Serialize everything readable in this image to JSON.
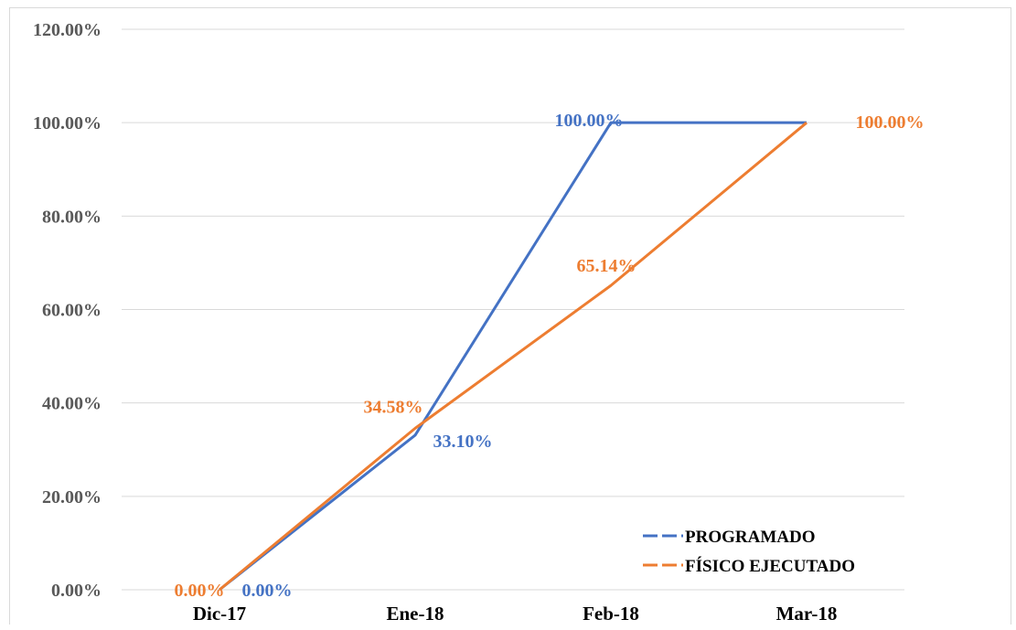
{
  "chart_data": {
    "type": "line",
    "title": "",
    "xlabel": "",
    "ylabel": "",
    "categories": [
      "Dic-17",
      "Ene-18",
      "Feb-18",
      "Mar-18"
    ],
    "ylim": [
      0,
      120
    ],
    "yticks": [
      "0.00%",
      "20.00%",
      "40.00%",
      "60.00%",
      "80.00%",
      "100.00%",
      "120.00%"
    ],
    "grid": true,
    "legend_position": "bottom-right",
    "series": [
      {
        "name": "PROGRAMADO",
        "color": "#4472c4",
        "values": [
          0,
          33.1,
          100,
          100
        ],
        "labels": [
          "0.00%",
          "33.10%",
          "100.00%",
          null
        ]
      },
      {
        "name": "FÍSICO EJECUTADO",
        "color": "#ed7d31",
        "values": [
          0,
          34.58,
          65.14,
          100
        ],
        "labels": [
          "0.00%",
          "34.58%",
          "65.14%",
          "100.00%"
        ]
      }
    ]
  }
}
